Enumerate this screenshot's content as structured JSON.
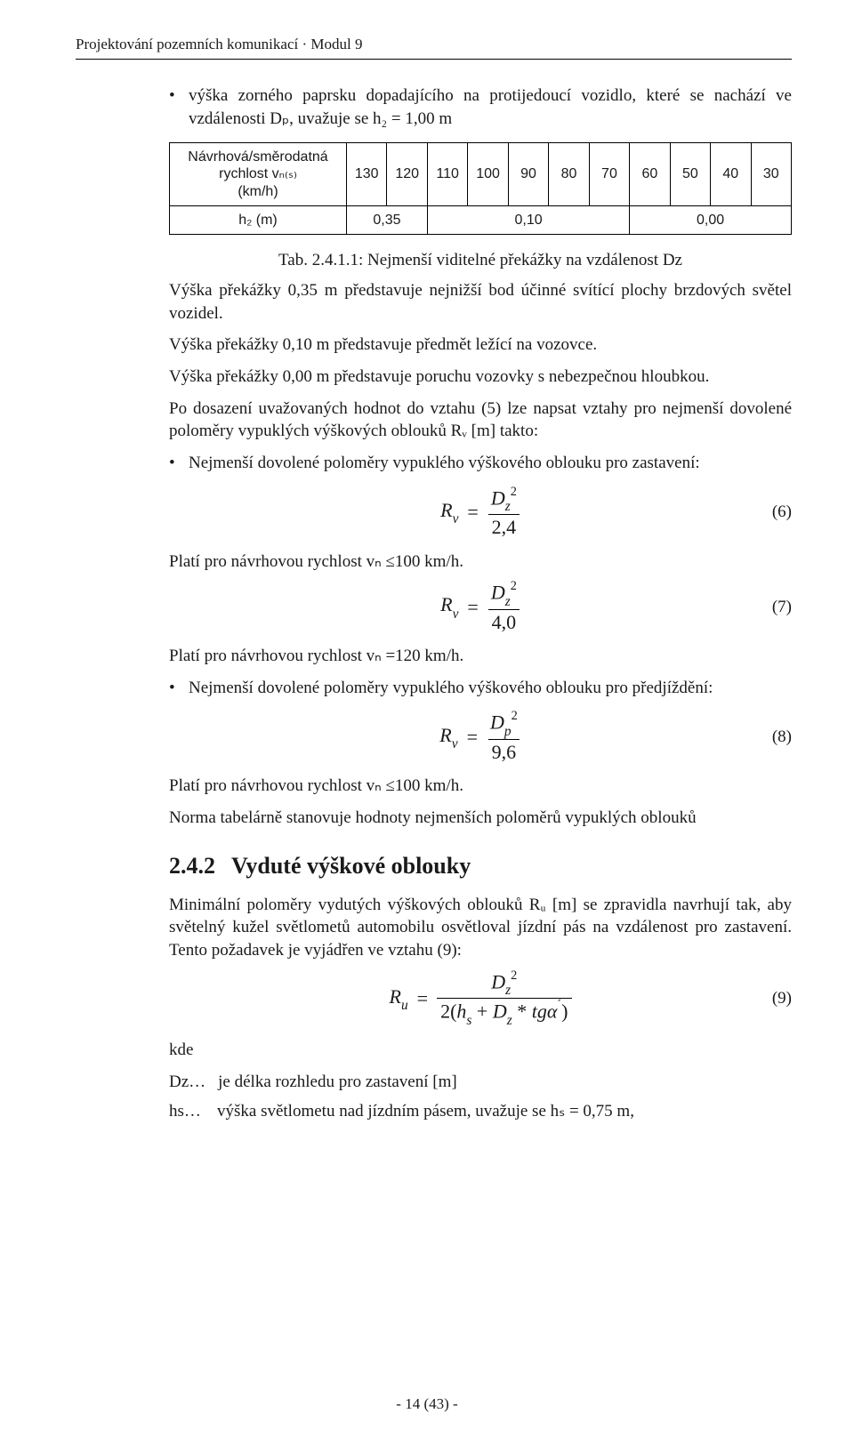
{
  "running_head": "Projektování pozemních komunikací · Modul 9",
  "bullet_intro": "výška zorného paprsku dopadajícího na protijedoucí vozidlo, které se nachází ve vzdálenosti Dₚ, uvažuje se h₂ = 1,00 m",
  "speed_table": {
    "row1_label_line1": "Návrhová/směrodatná rychlost vₙ₍ₛ₎",
    "row1_label_line2": "(km/h)",
    "row1_values": [
      "130",
      "120",
      "110",
      "100",
      "90",
      "80",
      "70",
      "60",
      "50",
      "40",
      "30"
    ],
    "row2_label": "h₂ (m)",
    "row2_spans": [
      {
        "span": 2,
        "value": "0,35"
      },
      {
        "span": 5,
        "value": "0,10"
      },
      {
        "span": 4,
        "value": "0,00"
      }
    ]
  },
  "tab_caption": "Tab. 2.4.1.1: Nejmenší viditelné překážky na vzdálenost Dz",
  "p_afterTable_1": "Výška překážky 0,35 m představuje nejnižší bod účinné svítící plochy brzdových světel vozidel.",
  "p_afterTable_2": "Výška překážky 0,10 m představuje předmět ležící na vozovce.",
  "p_afterTable_3": "Výška překážky 0,00 m představuje poruchu vozovky s nebezpečnou hloubkou.",
  "p_afterTable_4": "Po dosazení uvažovaných hodnot do vztahu (5) lze napsat vztahy pro nejmenší dovolené poloměry vypuklých výškových oblouků Rᵥ [m] takto:",
  "bullet_min_stop": "Nejmenší dovolené poloměry vypuklého výškového oblouku pro zastavení:",
  "eq6": {
    "lhs_sym": "R",
    "lhs_sub": "v",
    "num_sym": "D",
    "num_sub": "z",
    "num_sup": "2",
    "den": "2,4",
    "num_label": "(6)"
  },
  "p_vn100_a": "Platí pro návrhovou rychlost vₙ ≤100 km/h.",
  "eq7": {
    "lhs_sym": "R",
    "lhs_sub": "v",
    "num_sym": "D",
    "num_sub": "z",
    "num_sup": "2",
    "den": "4,0",
    "num_label": "(7)"
  },
  "p_vn120": "Platí pro návrhovou rychlost vₙ =120 km/h.",
  "bullet_min_pass": "Nejmenší dovolené poloměry vypuklého výškového oblouku pro předjíždění:",
  "eq8": {
    "lhs_sym": "R",
    "lhs_sub": "v",
    "num_sym": "D",
    "num_sub": "p",
    "num_sup": "2",
    "den": "9,6",
    "num_label": "(8)"
  },
  "p_vn100_b": "Platí pro návrhovou rychlost vₙ ≤100 km/h.",
  "p_norm": "Norma tabelárně stanovuje hodnoty nejmenších poloměrů vypuklých oblouků",
  "h2_num": "2.4.2",
  "h2_title": "Vyduté výškové oblouky",
  "p_section": "Minimální poloměry vydutých výškových oblouků Rᵤ [m] se zpravidla navrhují tak, aby světelný kužel světlometů automobilu osvětloval jízdní pás na vzdálenost pro zastavení. Tento požadavek je vyjádřen ve vztahu (9):",
  "eq9": {
    "lhs_sym": "R",
    "lhs_sub": "u",
    "num_sym": "D",
    "num_sub": "z",
    "num_sup": "2",
    "den_prefix": "2",
    "den_h": "h",
    "den_h_sub": "s",
    "den_plus": "+",
    "den_D": "D",
    "den_D_sub": "z",
    "den_star": "*",
    "den_tg": "tg",
    "den_alpha": "α",
    "den_prime": "´",
    "num_label": "(9)"
  },
  "kde_label": "kde",
  "kde_Dz_sym": "Dz…",
  "kde_Dz_txt": "je délka rozhledu pro zastavení [m]",
  "kde_hs_sym": "hs…",
  "kde_hs_txt": "výška světlometu nad jízdním pásem, uvažuje se hₛ = 0,75 m,",
  "footer": "- 14 (43) -"
}
